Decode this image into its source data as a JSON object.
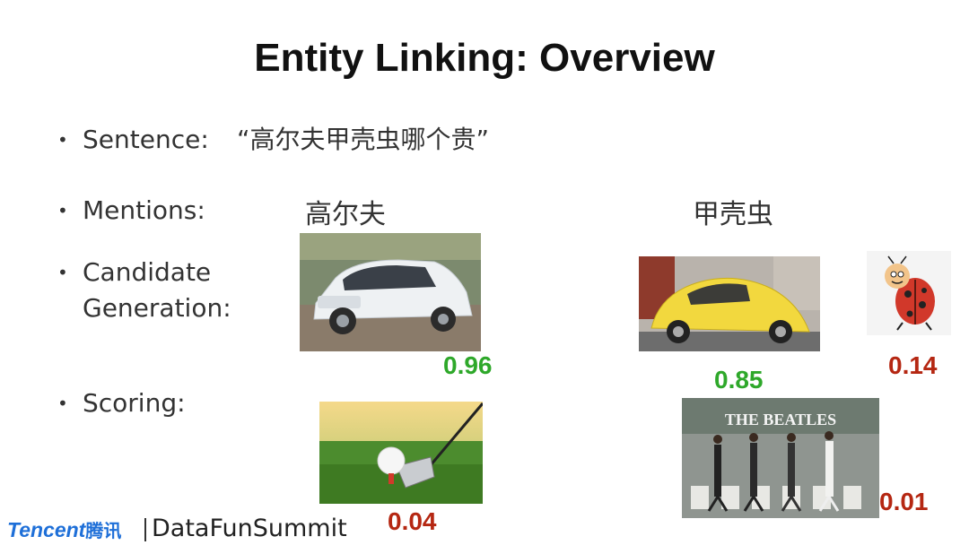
{
  "title": "Entity Linking: Overview",
  "bullets": {
    "sentence_label": "Sentence:",
    "sentence_value": "“高尔夫甲壳虫哪个贵”",
    "mentions_label": "Mentions:",
    "candidate_label_1": "Candidate",
    "candidate_label_2": "Generation:",
    "scoring_label": "Scoring:"
  },
  "mentions": [
    "高尔夫",
    "甲壳虫"
  ],
  "candidates": [
    {
      "image": "white-car-image",
      "score": "0.96",
      "color": "#2ea82a"
    },
    {
      "image": "golf-ball-image",
      "score": "0.04",
      "color": "#b52712"
    },
    {
      "image": "yellow-beetle-car-image",
      "score": "0.85",
      "color": "#2ea82a"
    },
    {
      "image": "ladybug-cartoon-image",
      "score": "0.14",
      "color": "#b52712"
    },
    {
      "image": "beatles-abbey-road-image",
      "score": "0.01",
      "color": "#b52712",
      "caption": "THE BEATLES"
    }
  ],
  "footer": {
    "logo_text": "Tencent",
    "logo_cn": "腾讯",
    "summit": "DataFunSummit"
  }
}
